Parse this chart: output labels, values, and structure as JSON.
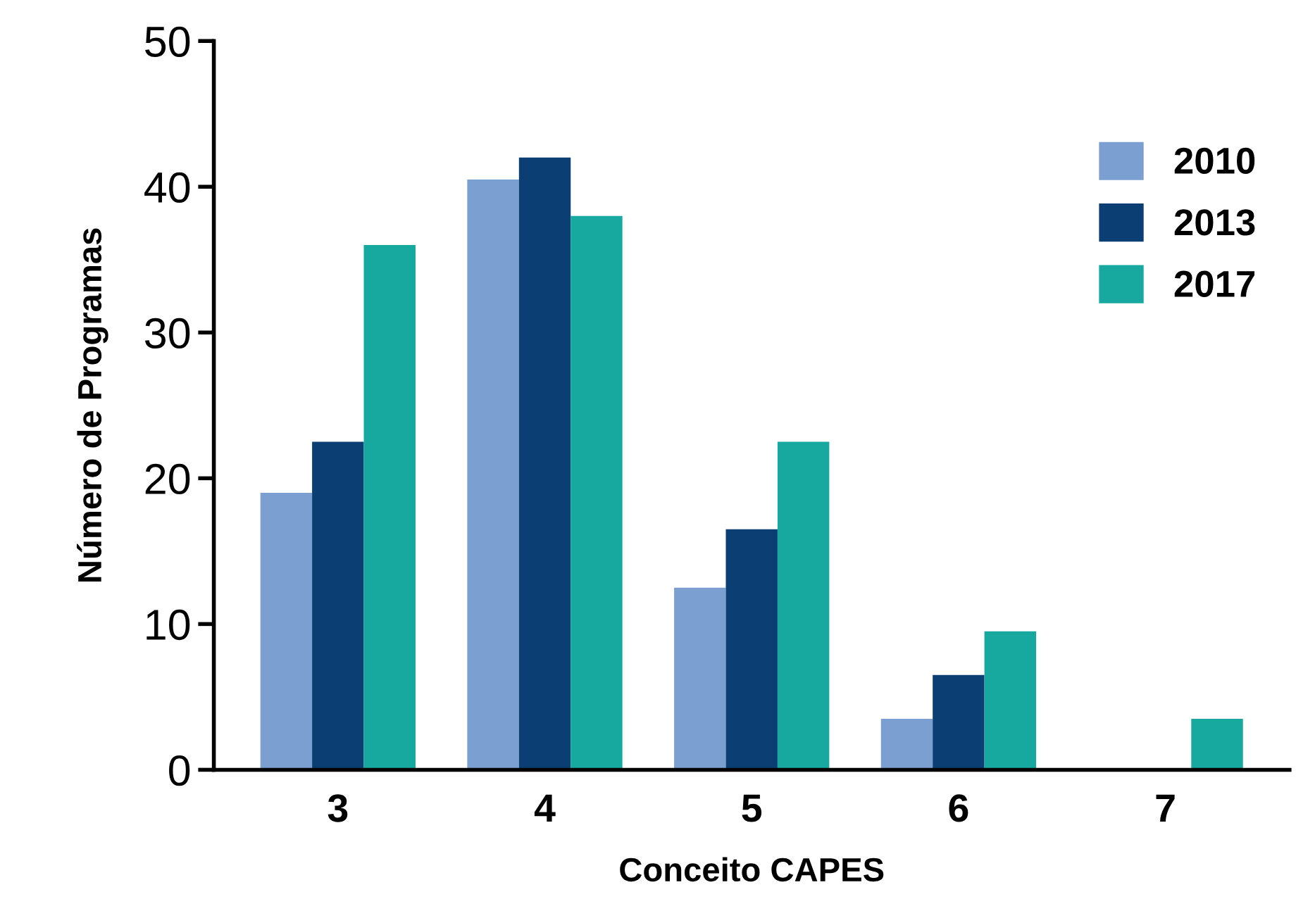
{
  "chart_data": {
    "type": "bar",
    "xlabel": "Conceito CAPES",
    "ylabel": "Número de Programas",
    "categories": [
      "3",
      "4",
      "5",
      "6",
      "7"
    ],
    "series": [
      {
        "name": "2010",
        "color": "#7b9fd0",
        "values": [
          19,
          40.5,
          12.5,
          3.5,
          null
        ]
      },
      {
        "name": "2013",
        "color": "#0b3f73",
        "values": [
          22.5,
          42,
          16.5,
          6.5,
          null
        ]
      },
      {
        "name": "2017",
        "color": "#17a9a0",
        "values": [
          36,
          38,
          22.5,
          9.5,
          3.5
        ]
      }
    ],
    "ylim": [
      0,
      50
    ],
    "yticks": [
      0,
      10,
      20,
      30,
      40,
      50
    ],
    "grid": false,
    "legend": "right"
  }
}
